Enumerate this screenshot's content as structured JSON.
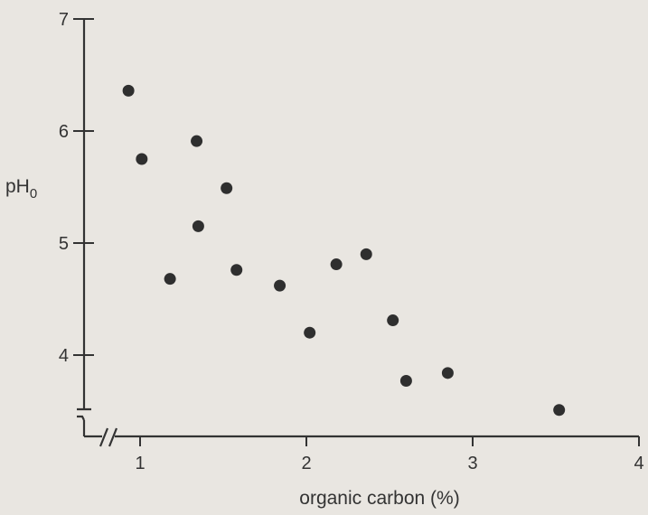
{
  "chart_data": {
    "type": "scatter",
    "xlabel": "organic carbon (%)",
    "ylabel": {
      "main": "pH",
      "subscript": "0"
    },
    "xlim": [
      0.7,
      4.0
    ],
    "ylim": [
      3.5,
      7.0
    ],
    "xticks": [
      {
        "value": 1,
        "label": "1"
      },
      {
        "value": 2,
        "label": "2"
      },
      {
        "value": 3,
        "label": "3"
      },
      {
        "value": 4,
        "label": "4"
      }
    ],
    "yticks": [
      {
        "value": 4,
        "label": "4"
      },
      {
        "value": 5,
        "label": "5"
      },
      {
        "value": 6,
        "label": "6"
      },
      {
        "value": 7,
        "label": "7"
      }
    ],
    "axis_breaks": true,
    "grid": false,
    "series": [
      {
        "points": [
          {
            "x": 0.93,
            "y": 6.36
          },
          {
            "x": 1.01,
            "y": 5.75
          },
          {
            "x": 1.18,
            "y": 4.68
          },
          {
            "x": 1.34,
            "y": 5.91
          },
          {
            "x": 1.35,
            "y": 5.15
          },
          {
            "x": 1.52,
            "y": 5.49
          },
          {
            "x": 1.58,
            "y": 4.76
          },
          {
            "x": 1.84,
            "y": 4.62
          },
          {
            "x": 2.02,
            "y": 4.2
          },
          {
            "x": 2.18,
            "y": 4.81
          },
          {
            "x": 2.36,
            "y": 4.9
          },
          {
            "x": 2.52,
            "y": 4.31
          },
          {
            "x": 2.6,
            "y": 3.77
          },
          {
            "x": 2.85,
            "y": 3.84
          },
          {
            "x": 3.52,
            "y": 3.51
          }
        ]
      }
    ],
    "colors": {
      "background": "#e9e6e1",
      "ink": "#333333",
      "marker": "#2f2f2f"
    }
  }
}
